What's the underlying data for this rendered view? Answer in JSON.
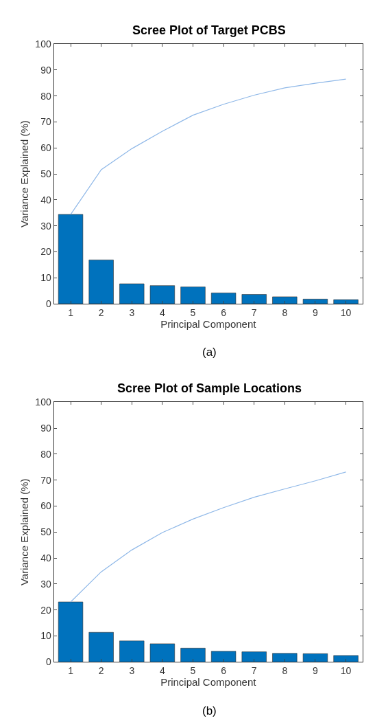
{
  "chart_data": [
    {
      "type": "bar",
      "title": "Scree Plot of Target PCBS",
      "xlabel": "Principal Component",
      "ylabel": "Variance Explained (%)",
      "annotations": [
        "(a)"
      ],
      "categories": [
        "1",
        "2",
        "3",
        "4",
        "5",
        "6",
        "7",
        "8",
        "9",
        "10"
      ],
      "ylim": [
        0,
        100
      ],
      "yticks": [
        0,
        10,
        20,
        30,
        40,
        50,
        60,
        70,
        80,
        90,
        100
      ],
      "series": [
        {
          "color": "#0072bd",
          "values": [
            34.4,
            16.9,
            7.7,
            7.0,
            6.5,
            4.2,
            3.6,
            2.7,
            1.8,
            1.6
          ]
        },
        {
          "type": "line",
          "color": "#8fb8e8",
          "values": [
            34.4,
            51.6,
            59.7,
            66.4,
            72.6,
            76.8,
            80.3,
            83.1,
            84.9,
            86.5
          ]
        }
      ]
    },
    {
      "type": "bar",
      "title": "Scree Plot of Sample Locations",
      "xlabel": "Principal Component",
      "ylabel": "Variance Explained (%)",
      "annotations": [
        "(b)"
      ],
      "categories": [
        "1",
        "2",
        "3",
        "4",
        "5",
        "6",
        "7",
        "8",
        "9",
        "10"
      ],
      "ylim": [
        0,
        100
      ],
      "yticks": [
        0,
        10,
        20,
        30,
        40,
        50,
        60,
        70,
        80,
        90,
        100
      ],
      "series": [
        {
          "color": "#0072bd",
          "values": [
            23.1,
            11.4,
            8.1,
            7.0,
            5.3,
            4.1,
            3.9,
            3.3,
            3.2,
            2.5
          ]
        },
        {
          "type": "line",
          "color": "#8fb8e8",
          "values": [
            23.1,
            34.7,
            43.1,
            49.8,
            55.0,
            59.4,
            63.4,
            66.6,
            69.7,
            73.1
          ]
        }
      ]
    }
  ]
}
